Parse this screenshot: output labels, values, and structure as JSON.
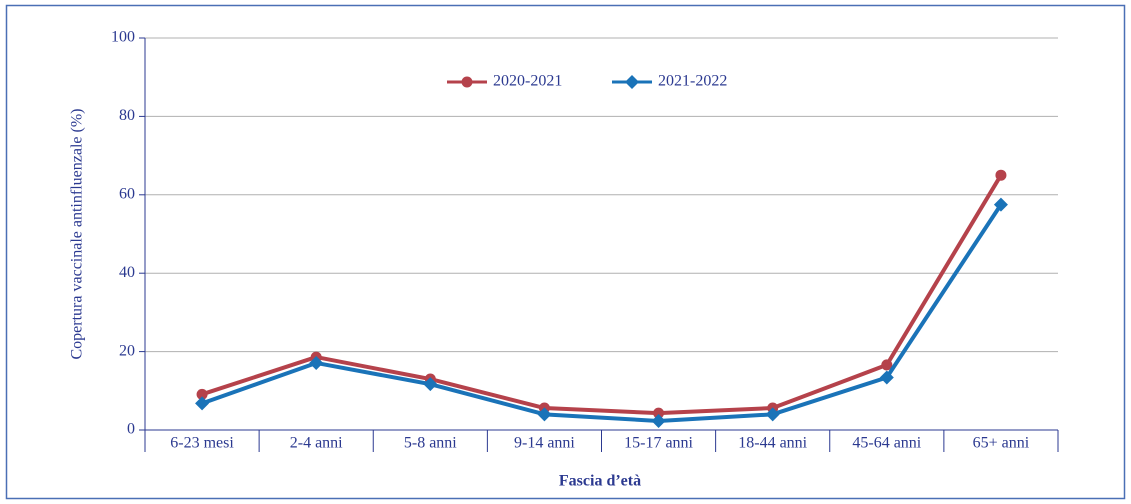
{
  "chart_data": {
    "type": "line",
    "x_label": "Fascia d’età",
    "y_label": "Copertura vaccinale antinfluenzale (%)",
    "categories": [
      "6-23 mesi",
      "2-4 anni",
      "5-8 anni",
      "9-14 anni",
      "15-17 anni",
      "18-44 anni",
      "45-64 anni",
      "65+ anni"
    ],
    "series": [
      {
        "name": "2020-2021",
        "color": "#b5424b",
        "marker": "circle",
        "values": [
          9.1,
          18.6,
          13,
          5.6,
          4.3,
          5.6,
          16.6,
          65
        ]
      },
      {
        "name": "2021-2022",
        "color": "#1a73b8",
        "marker": "diamond",
        "values": [
          6.8,
          17.1,
          11.7,
          4.0,
          2.3,
          4.0,
          13.4,
          57.5
        ]
      }
    ],
    "ylim": [
      0,
      100
    ],
    "yticks": [
      0,
      20,
      40,
      60,
      80,
      100
    ],
    "grid": true,
    "legend": "top"
  }
}
